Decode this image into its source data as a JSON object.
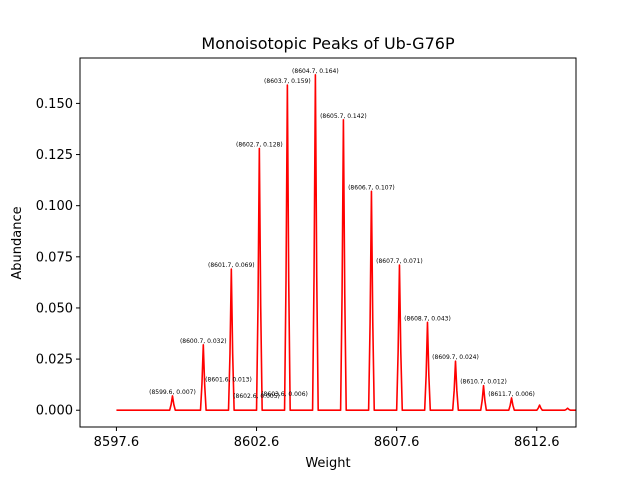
{
  "chart_data": {
    "type": "line",
    "title": "Monoisotopic Peaks of Ub-G76P",
    "xlabel": "Weight",
    "ylabel": "Abundance",
    "xlim": [
      8596.3,
      8614.0
    ],
    "ylim": [
      -0.0082,
      0.1722
    ],
    "x_ticks": [
      8597.6,
      8602.6,
      8607.6,
      8612.6
    ],
    "x_tick_labels": [
      "8597.6",
      "8602.6",
      "8607.6",
      "8612.6"
    ],
    "y_ticks": [
      0.0,
      0.025,
      0.05,
      0.075,
      0.1,
      0.125,
      0.15
    ],
    "y_tick_labels": [
      "0.000",
      "0.025",
      "0.050",
      "0.075",
      "0.100",
      "0.125",
      "0.150"
    ],
    "grid": false,
    "line_color": "#ff0000",
    "baseline_range": [
      8597.6,
      8614.0
    ],
    "series": [
      {
        "peaks": [
          {
            "x": 8599.6,
            "y": 0.007,
            "label": "(8599.6, 0.007)"
          },
          {
            "x": 8600.7,
            "y": 0.032,
            "label": "(8600.7, 0.032)"
          },
          {
            "x": 8601.7,
            "y": 0.069,
            "label": "(8601.7, 0.069)"
          },
          {
            "x": 8602.7,
            "y": 0.128,
            "label": "(8602.7, 0.128)"
          },
          {
            "x": 8603.7,
            "y": 0.159,
            "label": "(8603.7, 0.159)"
          },
          {
            "x": 8604.7,
            "y": 0.164,
            "label": "(8604.7, 0.164)"
          },
          {
            "x": 8605.7,
            "y": 0.142,
            "label": "(8605.7, 0.142)"
          },
          {
            "x": 8606.7,
            "y": 0.107,
            "label": "(8606.7, 0.107)"
          },
          {
            "x": 8607.7,
            "y": 0.071,
            "label": "(8607.7, 0.071)"
          },
          {
            "x": 8608.7,
            "y": 0.043,
            "label": "(8608.7, 0.043)"
          },
          {
            "x": 8609.7,
            "y": 0.024,
            "label": "(8609.7, 0.024)"
          },
          {
            "x": 8610.7,
            "y": 0.012,
            "label": "(8610.7, 0.012)"
          },
          {
            "x": 8611.7,
            "y": 0.006,
            "label": "(8611.7, 0.006)"
          },
          {
            "x": 8612.7,
            "y": 0.0025,
            "label": ""
          },
          {
            "x": 8613.7,
            "y": 0.001,
            "label": ""
          }
        ],
        "secondary_labels": [
          {
            "x": 8601.6,
            "y": 0.013,
            "label": "(8601.6, 0.013)"
          },
          {
            "x": 8602.6,
            "y": 0.005,
            "label": "(8602.6, 0.005)"
          },
          {
            "x": 8603.6,
            "y": 0.006,
            "label": "(8603.6, 0.006)"
          }
        ]
      }
    ]
  }
}
